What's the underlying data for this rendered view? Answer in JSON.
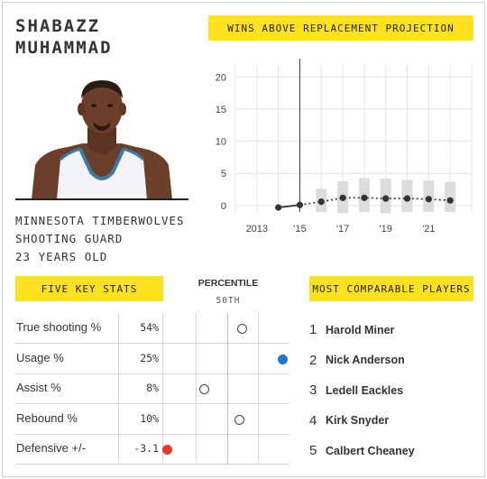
{
  "player": {
    "name_line1": "SHABAZZ",
    "name_line2": "MUHAMMAD",
    "team": "MINNESOTA TIMBERWOLVES",
    "position": "SHOOTING GUARD",
    "age": "23 YEARS OLD"
  },
  "war": {
    "header": "WINS ABOVE REPLACEMENT PROJECTION"
  },
  "chart_data": {
    "type": "line",
    "title": "WINS ABOVE REPLACEMENT PROJECTION",
    "x_ticks": [
      "2013",
      "'15",
      "'17",
      "'19",
      "'21"
    ],
    "x_tick_years": [
      2013,
      2015,
      2017,
      2019,
      2021
    ],
    "xlim": [
      2012,
      2023
    ],
    "y_ticks": [
      "0",
      "5",
      "10",
      "15",
      "20"
    ],
    "ylim": [
      -1,
      22
    ],
    "divider_year": 2015,
    "grid": true,
    "series": [
      {
        "kind": "history",
        "x": [
          2014,
          2015
        ],
        "y": [
          -0.3,
          0.1
        ]
      },
      {
        "kind": "projection",
        "x": [
          2015,
          2016,
          2017,
          2018,
          2019,
          2020,
          2021,
          2022
        ],
        "y": [
          0.1,
          0.6,
          1.2,
          1.2,
          1.1,
          1.1,
          1.0,
          0.8
        ],
        "low": [
          -0.3,
          -1.0,
          -1.2,
          -1.0,
          -1.2,
          -1.0,
          -1.0,
          -1.0
        ],
        "high": [
          0.4,
          2.6,
          3.8,
          4.3,
          4.2,
          4.0,
          3.9,
          3.7
        ]
      }
    ]
  },
  "stats": {
    "header": "FIVE KEY STATS",
    "percentile_label": "PERCENTILE",
    "percentile_sub": "50TH",
    "rows": [
      {
        "name": "True shooting %",
        "value": "54%",
        "percentile": 62,
        "color": "#ffffff"
      },
      {
        "name": "Usage %",
        "value": "25%",
        "percentile": 95,
        "color": "#1e78cc"
      },
      {
        "name": "Assist %",
        "value": "8%",
        "percentile": 32,
        "color": "#ffffff"
      },
      {
        "name": "Rebound %",
        "value": "10%",
        "percentile": 60,
        "color": "#ffffff"
      },
      {
        "name": "Defensive +/-",
        "value": "-3.1",
        "percentile": 1,
        "color": "#e33b2e"
      }
    ]
  },
  "comparables": {
    "header": "MOST COMPARABLE PLAYERS",
    "players": [
      {
        "rank": "1",
        "name": "Harold Miner"
      },
      {
        "rank": "2",
        "name": "Nick Anderson"
      },
      {
        "rank": "3",
        "name": "Ledell Eackles"
      },
      {
        "rank": "4",
        "name": "Kirk Snyder"
      },
      {
        "rank": "5",
        "name": "Calbert Cheaney"
      }
    ]
  }
}
